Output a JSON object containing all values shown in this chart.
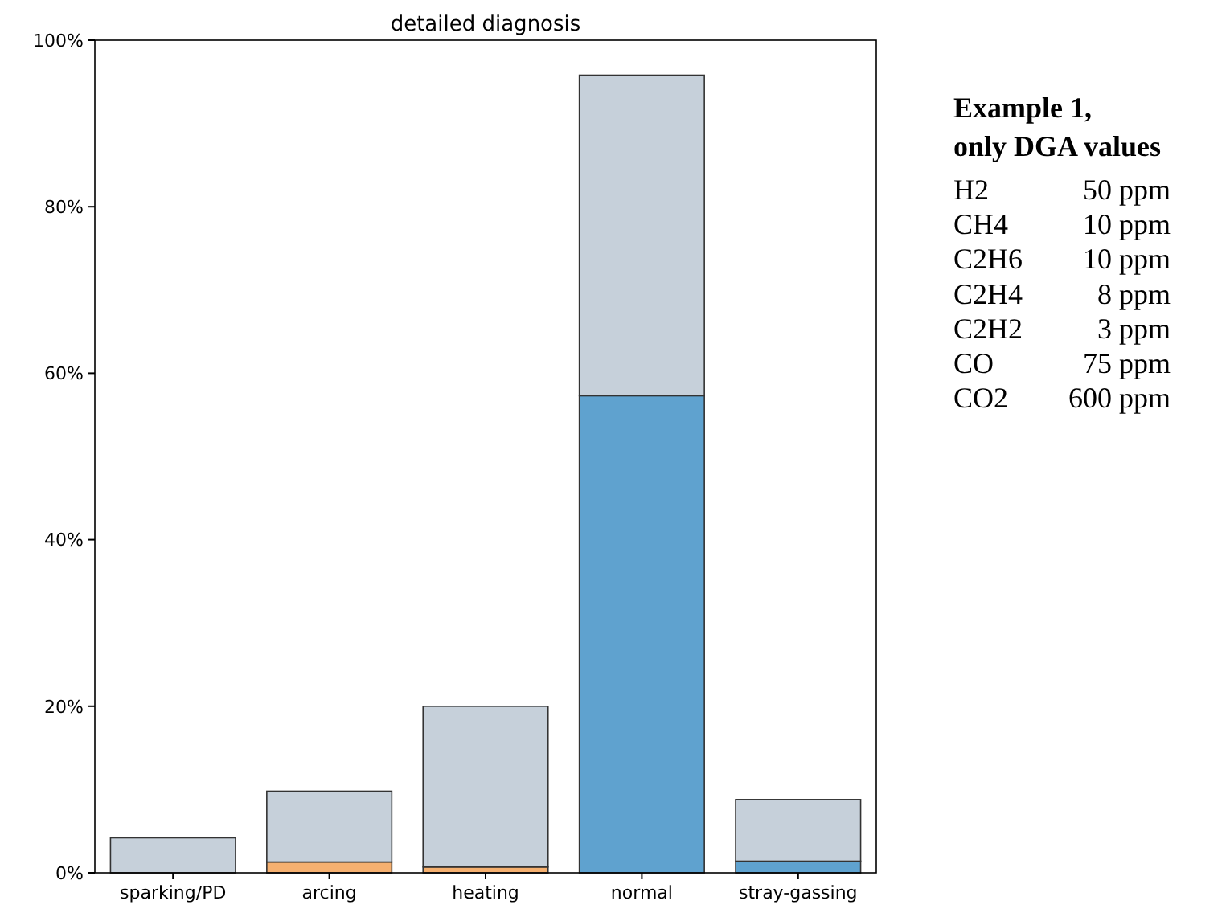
{
  "chart_data": {
    "type": "bar",
    "title": "detailed diagnosis",
    "stacked": true,
    "categories": [
      "sparking/PD",
      "arcing",
      "heating",
      "normal",
      "stray-gassing"
    ],
    "series": [
      {
        "colors": [
          null,
          "#f5b070",
          "#f5b070",
          "#5fa2cf",
          "#5fa2cf"
        ],
        "values": [
          null,
          1.3,
          0.7,
          57.3,
          1.4
        ]
      },
      {
        "color": "#c6d0da",
        "values": [
          4.2,
          8.5,
          19.3,
          38.5,
          7.4
        ]
      }
    ],
    "ylim": [
      0,
      100
    ],
    "yticks": [
      {
        "value": 0,
        "label": "0%"
      },
      {
        "value": 20,
        "label": "20%"
      },
      {
        "value": 40,
        "label": "40%"
      },
      {
        "value": 60,
        "label": "60%"
      },
      {
        "value": 80,
        "label": "80%"
      },
      {
        "value": 100,
        "label": "100%"
      }
    ],
    "grid": false,
    "annotations": [
      "Example 1,\nonly DGA values",
      "H2 50 ppm",
      "CH4 10 ppm",
      "C2H6 10 ppm",
      "C2H4 8 ppm",
      "C2H2 3 ppm",
      "CO 75 ppm",
      "CO2 600 ppm"
    ]
  }
}
